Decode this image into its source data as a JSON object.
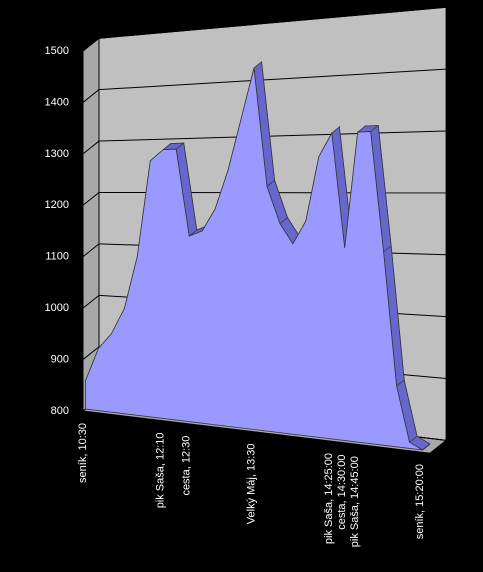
{
  "chart_data": {
    "type": "area3d",
    "categories": [
      "seník, 10:30",
      null,
      null,
      null,
      null,
      null,
      "pik Saša, 12:10",
      null,
      "cesta, 12:30",
      null,
      null,
      null,
      null,
      "Velký Máj, 13:30",
      null,
      null,
      null,
      null,
      null,
      "pik Saša, 14:25:00",
      "cesta, 14:30:00",
      "pik Saša, 14:45:00",
      null,
      null,
      null,
      null,
      "seník, 15:20:00"
    ],
    "values": [
      855,
      920,
      950,
      1000,
      1100,
      1280,
      1300,
      1300,
      1140,
      1150,
      1190,
      1260,
      1350,
      1440,
      1230,
      1165,
      1130,
      1170,
      1280,
      1320,
      1125,
      1320,
      1320,
      1120,
      900,
      810,
      800
    ],
    "color": "#9999ff",
    "depth_color": "#6666cc",
    "ylim": [
      800,
      1500
    ],
    "yticks": [
      800,
      900,
      1000,
      1100,
      1200,
      1300,
      1400,
      1500
    ],
    "grid": true
  }
}
